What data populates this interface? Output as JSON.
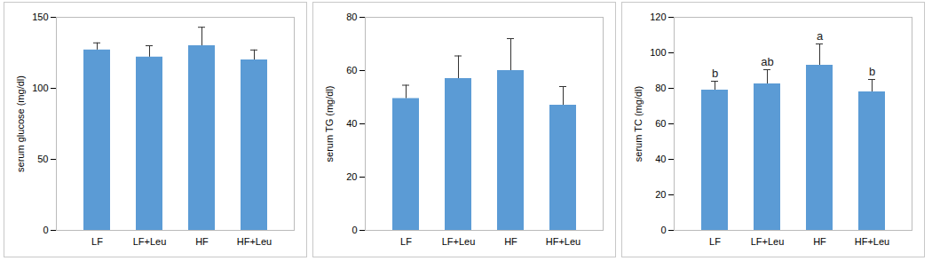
{
  "chart_data": [
    {
      "type": "bar",
      "y_label": "serum glucose (mg/dl)",
      "categories": [
        "LF",
        "LF+Leu",
        "HF",
        "HF+Leu"
      ],
      "values": [
        127,
        122,
        130,
        120
      ],
      "errors": [
        5,
        8,
        13,
        7
      ],
      "color": "#5b9bd5",
      "ylim": [
        0,
        150
      ],
      "yticks": [
        0,
        50,
        100,
        150
      ],
      "grid": false
    },
    {
      "type": "bar",
      "y_label": "serum TG (mg/dl)",
      "categories": [
        "LF",
        "LF+Leu",
        "HF",
        "HF+Leu"
      ],
      "values": [
        49.5,
        57,
        60,
        47
      ],
      "errors": [
        5,
        8.5,
        12,
        7
      ],
      "color": "#5b9bd5",
      "ylim": [
        0,
        80
      ],
      "yticks": [
        0,
        20,
        40,
        60,
        80
      ],
      "grid": false
    },
    {
      "type": "bar",
      "y_label": "serum TC (mg/dl)",
      "categories": [
        "LF",
        "LF+Leu",
        "HF",
        "HF+Leu"
      ],
      "values": [
        79,
        82.5,
        93,
        78
      ],
      "errors": [
        5,
        8,
        12,
        7
      ],
      "annotations": [
        "b",
        "ab",
        "a",
        "b"
      ],
      "color": "#5b9bd5",
      "ylim": [
        0,
        120
      ],
      "yticks": [
        0,
        20,
        40,
        60,
        80,
        100,
        120
      ],
      "grid": false
    }
  ]
}
